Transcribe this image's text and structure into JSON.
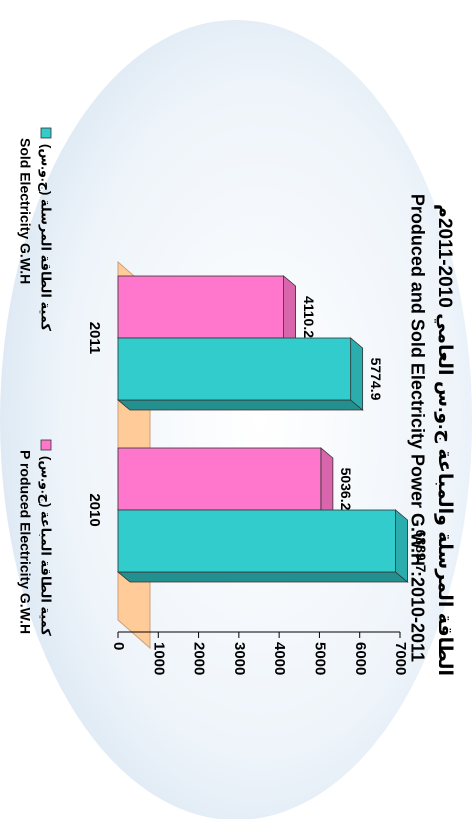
{
  "chart_data": {
    "type": "bar",
    "title": "الطاقة المرسلة والمباعة ج.و.س العامي 2010-2011م",
    "subtitle": "Produced and Sold Electricity Power G.W.H :2010-2011",
    "categories": [
      "2010",
      "2011"
    ],
    "series": [
      {
        "name": "كمية الطاقة المرسلة (ج.و.س)",
        "name_en": "Sold Electricity G.W.H",
        "color": "#33cccc",
        "values": [
          6889.7,
          5774.9
        ]
      },
      {
        "name": "كمية الطاقة المباعة (ج.و.س)",
        "name_en": "P roduced Electricity G.W.H",
        "color": "#ff77cc",
        "values": [
          5036.2,
          4110.2
        ]
      }
    ],
    "ylim": [
      0,
      7000
    ],
    "yticks": [
      0,
      1000,
      2000,
      3000,
      4000,
      5000,
      6000,
      7000
    ],
    "grid": false
  }
}
